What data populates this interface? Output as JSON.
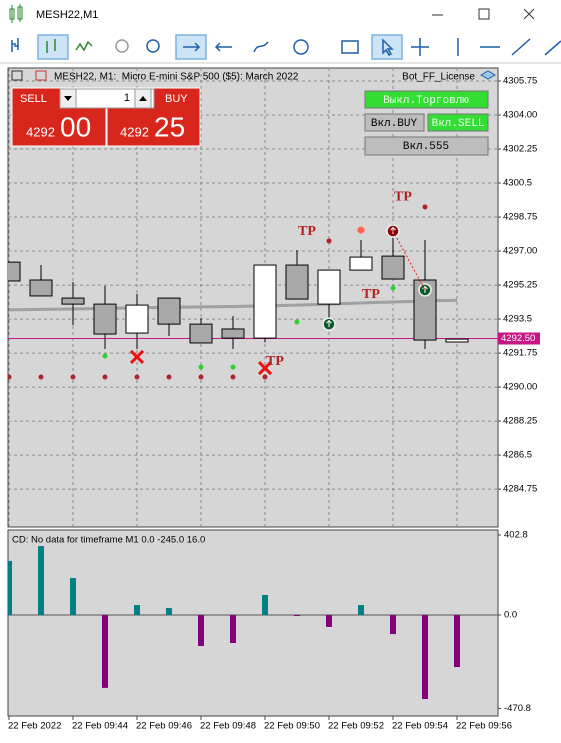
{
  "window": {
    "title": "MESH22,M1"
  },
  "chart_header": {
    "symbol": "MESH22, M1:  Micro E-mini S&P 500 ($5): March 2022",
    "expert": "Bot_FF_License"
  },
  "trade_panel": {
    "sell": "SELL",
    "lot": "1",
    "buy": "BUY",
    "sell_price_big": "4292",
    "sell_price_small": "00",
    "buy_price_big": "4292",
    "buy_price_small": "25"
  },
  "buttons": {
    "trading_off": "Выкл.Торговлю",
    "buy_on": "Вкл.BUY",
    "sell_on": "Вкл.SELL",
    "b555": "Вкл.555"
  },
  "chart_data": [
    {
      "type": "candlestick",
      "categories": [
        "22 Feb 2022",
        null,
        "22 Feb 09:44",
        null,
        "22 Feb 09:46",
        null,
        "22 Feb 09:48",
        null,
        "22 Feb 09:50",
        null,
        "22 Feb 09:52",
        null,
        "22 Feb 09:54",
        null,
        "22 Feb 09:56"
      ],
      "open": [
        4296.43,
        4295.51,
        4294.58,
        4294.27,
        4292.78,
        4294.58,
        4293.24,
        4292.99,
        4292.52,
        4296.28,
        4294.27,
        4296.02,
        4296.74,
        4295.51,
        4292.32
      ],
      "high": [
        4296.43,
        4296.28,
        4295.4,
        4295.2,
        4294.79,
        4294.58,
        4293.55,
        4293.65,
        4296.28,
        4297.05,
        4296.02,
        4297.57,
        4298.39,
        4297.57,
        4292.47
      ],
      "low": [
        4295.46,
        4294.69,
        4293.19,
        4291.96,
        4291.96,
        4292.63,
        4292.27,
        4291.96,
        4292.3,
        4294.53,
        4293.55,
        4296.02,
        4295.56,
        4291.96,
        4292.32
      ],
      "close": [
        4295.46,
        4294.69,
        4294.27,
        4292.73,
        4294.22,
        4293.24,
        4292.27,
        4292.52,
        4296.28,
        4294.53,
        4296.02,
        4296.69,
        4295.56,
        4292.42,
        4292.47
      ],
      "bull_color": "#ffffff",
      "bear_color": "#a8a8a8",
      "ma": {
        "color": "#a0a0a0",
        "values": [
          4293.97,
          4294.0,
          4294.02,
          4294.05,
          4294.08,
          4294.1,
          4294.13,
          4294.15,
          4294.18,
          4294.22,
          4294.27,
          4294.33,
          4294.38,
          4294.43,
          4294.47
        ]
      },
      "markers": [
        {
          "shape": "dot",
          "color": "#a52a2a",
          "values": [
            4290.52,
            4290.52,
            4290.52,
            4290.52,
            4290.52,
            4290.52,
            4290.52,
            4290.52,
            4290.52,
            null,
            null,
            null,
            null,
            null,
            null
          ]
        },
        {
          "shape": "dot",
          "color": "#33cc33",
          "values": [
            null,
            null,
            null,
            4291.6,
            null,
            null,
            4291.03,
            4291.03,
            null,
            4293.35,
            null,
            null,
            4295.1,
            null,
            null
          ]
        },
        {
          "shape": "dot",
          "color": "#b22222",
          "values": [
            null,
            null,
            null,
            null,
            null,
            null,
            null,
            null,
            null,
            null,
            4297.52,
            null,
            null,
            4299.27,
            null
          ]
        },
        {
          "shape": "big-dot",
          "color": "#ff6347",
          "values": [
            null,
            null,
            null,
            null,
            null,
            null,
            null,
            null,
            null,
            null,
            null,
            4298.08,
            null,
            null,
            null
          ]
        },
        {
          "shape": "cross",
          "color": "#ee1111",
          "values": [
            null,
            null,
            null,
            null,
            4291.55,
            null,
            null,
            null,
            4290.98,
            null,
            null,
            null,
            null,
            null,
            null
          ]
        },
        {
          "shape": "ring",
          "color": "#0b5a2a",
          "values": [
            null,
            null,
            null,
            null,
            null,
            null,
            null,
            null,
            null,
            null,
            4293.24,
            null,
            null,
            4295.0,
            null
          ]
        },
        {
          "shape": "ring",
          "color": "#8b0000",
          "values": [
            null,
            null,
            null,
            null,
            null,
            null,
            null,
            null,
            null,
            null,
            null,
            null,
            4298.03,
            null,
            null
          ]
        }
      ],
      "tp_labels": [
        null,
        null,
        null,
        null,
        null,
        null,
        null,
        null,
        "TP",
        "TP",
        null,
        "TP",
        "TP",
        null,
        null
      ],
      "tp_values": [
        null,
        null,
        null,
        null,
        null,
        null,
        null,
        null,
        4291.29,
        4297.98,
        null,
        4294.74,
        4299.78,
        null,
        null
      ],
      "tp_color": "#b22222",
      "price_line": {
        "value": 4292.5,
        "label": "4292.50",
        "color": "#c71585"
      },
      "ylim": [
        4282.8,
        4306.42
      ],
      "yticks": [
        4305.75,
        {
          "value": 4304,
          "label": "4304.00"
        },
        4302.25,
        4300.5,
        4298.75,
        {
          "value": 4297,
          "label": "4297.00"
        },
        4295.25,
        4293.5,
        4291.75,
        {
          "value": 4290,
          "label": "4290.00"
        },
        4288.25,
        4286.5,
        4284.75
      ],
      "grid": true
    },
    {
      "type": "bar",
      "title": "CD: No data for timeframe M1 0.0 -245.0 16.0",
      "values": [
        272,
        347,
        186,
        -367,
        50,
        35,
        -156,
        -141,
        101,
        -5,
        -60,
        50,
        -96,
        -423,
        -262
      ],
      "positive_color": "#008080",
      "negative_color": "#800080",
      "ylim": [
        -508.5,
        428
      ],
      "yticks": [
        402.8,
        {
          "value": 0,
          "label": "0.0"
        },
        -470.8
      ]
    }
  ]
}
